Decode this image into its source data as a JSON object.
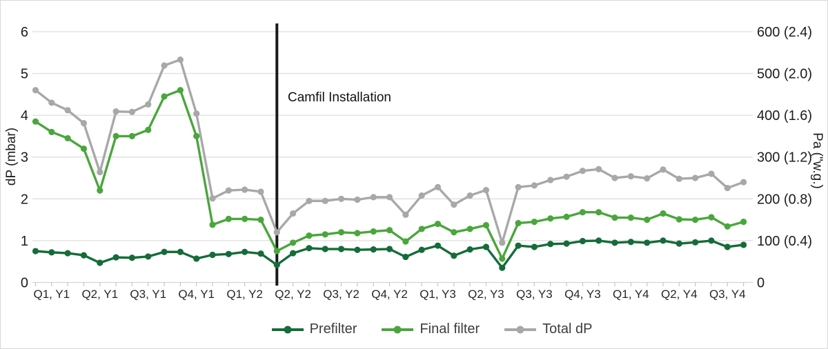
{
  "chart_data": {
    "type": "line",
    "title": "",
    "annotation": {
      "text": "Camfil Installation",
      "at_point_index": 15
    },
    "legend_position": "bottom",
    "grid": true,
    "categories": [
      "Q1, Y1",
      "Q2, Y1",
      "Q3, Y1",
      "Q4, Y1",
      "Q1, Y2",
      "Q2, Y2",
      "Q3, Y2",
      "Q4, Y2",
      "Q1, Y3",
      "Q2, Y3",
      "Q3, Y3",
      "Q4, Y3",
      "Q1, Y4",
      "Q2, Y4",
      "Q3, Y4"
    ],
    "points_per_category": 3,
    "y_axis_left": {
      "label": "dP (mbar)",
      "ticks": [
        0,
        1,
        2,
        3,
        4,
        5,
        6
      ],
      "range": [
        0,
        6
      ]
    },
    "y_axis_right": {
      "label": "Pa (\"w.g.)",
      "tick_labels": [
        "0",
        "100 (0.4)",
        "200 (0.8)",
        "300 (1.2)",
        "400 (1.6)",
        "500 (2.0)",
        "600 (2.4)"
      ]
    },
    "series": [
      {
        "name": "Prefilter",
        "color": "#156c38",
        "values": [
          0.75,
          0.72,
          0.7,
          0.65,
          0.47,
          0.6,
          0.59,
          0.62,
          0.73,
          0.73,
          0.57,
          0.66,
          0.68,
          0.73,
          0.69,
          0.42,
          0.7,
          0.82,
          0.8,
          0.8,
          0.78,
          0.79,
          0.8,
          0.61,
          0.78,
          0.88,
          0.64,
          0.79,
          0.85,
          0.35,
          0.88,
          0.85,
          0.92,
          0.93,
          0.99,
          1.0,
          0.95,
          0.97,
          0.95,
          1.0,
          0.93,
          0.96,
          1.0,
          0.85,
          0.9
        ]
      },
      {
        "name": "Final filter",
        "color": "#4aa63c",
        "values": [
          3.85,
          3.6,
          3.45,
          3.2,
          2.2,
          3.5,
          3.5,
          3.65,
          4.45,
          4.6,
          3.5,
          1.38,
          1.52,
          1.52,
          1.5,
          0.75,
          0.95,
          1.12,
          1.15,
          1.2,
          1.18,
          1.22,
          1.25,
          0.98,
          1.28,
          1.4,
          1.2,
          1.28,
          1.37,
          0.57,
          1.42,
          1.45,
          1.53,
          1.57,
          1.68,
          1.68,
          1.55,
          1.55,
          1.5,
          1.65,
          1.51,
          1.5,
          1.56,
          1.34,
          1.45
        ]
      },
      {
        "name": "Total dP",
        "color": "#a8a8a8",
        "values": [
          4.6,
          4.3,
          4.12,
          3.81,
          2.64,
          4.09,
          4.08,
          4.26,
          5.19,
          5.33,
          4.04,
          2.01,
          2.2,
          2.22,
          2.17,
          1.2,
          1.65,
          1.95,
          1.95,
          2.0,
          1.98,
          2.04,
          2.04,
          1.62,
          2.08,
          2.28,
          1.86,
          2.08,
          2.21,
          0.95,
          2.28,
          2.32,
          2.45,
          2.53,
          2.67,
          2.71,
          2.5,
          2.54,
          2.49,
          2.7,
          2.48,
          2.5,
          2.6,
          2.26,
          2.4
        ]
      }
    ],
    "styles": {
      "gridline_color": "#dedede",
      "axis_line_color": "#d4d4d4",
      "tick_mark_color": "#c9c9c9",
      "tick_label_color": "#1c1c1c",
      "x_label_color": "#262626",
      "marker_line_color": "#1a1a1a",
      "background_color": "#ffffff"
    }
  }
}
